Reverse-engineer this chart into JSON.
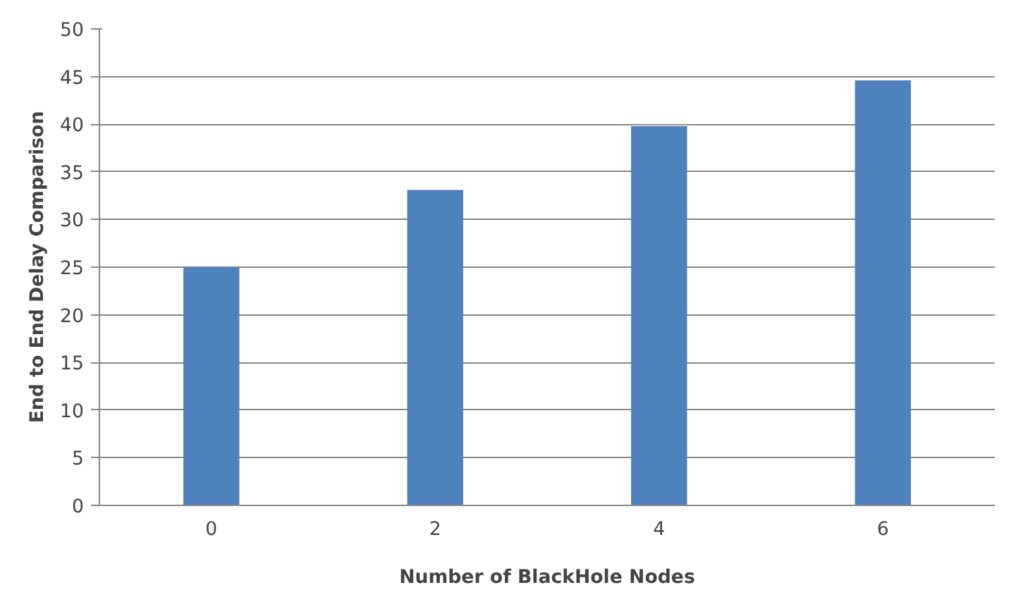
{
  "chart_data": {
    "type": "bar",
    "xlabel": "Number of BlackHole Nodes",
    "ylabel": "End to End Delay Comparison",
    "categories": [
      "0",
      "2",
      "4",
      "6"
    ],
    "values": [
      25,
      33.1,
      39.8,
      44.6
    ],
    "color": "#4f81bd",
    "ylim": [
      0,
      50
    ],
    "yticks": [
      0,
      5,
      10,
      15,
      20,
      25,
      30,
      35,
      40,
      45,
      50
    ],
    "grid": "y"
  }
}
